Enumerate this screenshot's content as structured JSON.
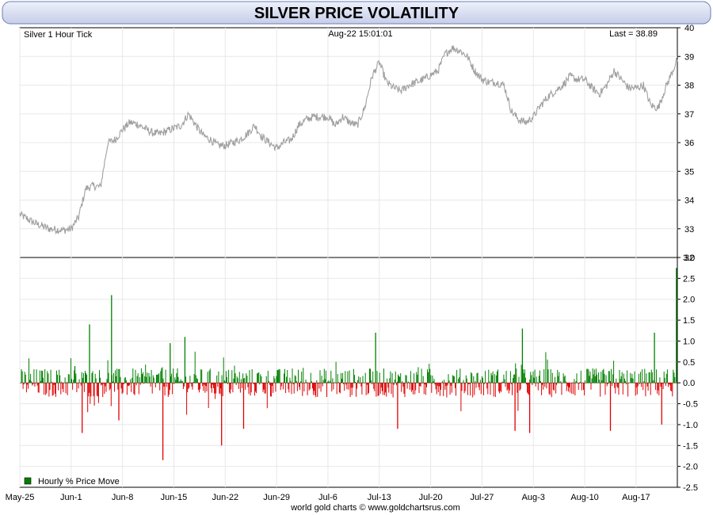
{
  "title": "SILVER PRICE VOLATILITY",
  "header": {
    "series_label": "Silver 1 Hour Tick",
    "timestamp": "Aug-22  15:01:01",
    "last_label": "Last = 38.89"
  },
  "legend": {
    "label": "Hourly % Price Move",
    "color": "#008000"
  },
  "credit": "world gold charts © www.goldchartsrus.com",
  "colors": {
    "title_bar": "#d9dff2",
    "price_line": "#a0a0a0",
    "up_bar": "#008000",
    "down_bar": "#e00000",
    "grid": "#e8e8e8",
    "frame": "#000000"
  },
  "chart_data": [
    {
      "type": "line",
      "name": "Silver 1 Hour Tick",
      "x_labels": [
        "May-25",
        "Jun-1",
        "Jun-8",
        "Jun-15",
        "Jun-22",
        "Jun-29",
        "Jul-6",
        "Jul-13",
        "Jul-20",
        "Jul-27",
        "Aug-3",
        "Aug-10",
        "Aug-17"
      ],
      "y_ticks": [
        32,
        33,
        34,
        35,
        36,
        37,
        38,
        39,
        40
      ],
      "ylim": [
        32,
        40
      ],
      "last_value": 38.89,
      "grid": true,
      "points": [
        [
          "May-25",
          33.5
        ],
        [
          "May-27",
          33.2
        ],
        [
          "May-29",
          33.0
        ],
        [
          "May-31",
          32.95
        ],
        [
          "Jun-1",
          33.0
        ],
        [
          "Jun-2",
          33.4
        ],
        [
          "Jun-3",
          34.4
        ],
        [
          "Jun-4",
          34.5
        ],
        [
          "Jun-5",
          34.45
        ],
        [
          "Jun-6",
          36.0
        ],
        [
          "Jun-7",
          36.1
        ],
        [
          "Jun-8",
          36.45
        ],
        [
          "Jun-9",
          36.7
        ],
        [
          "Jun-10",
          36.65
        ],
        [
          "Jun-11",
          36.5
        ],
        [
          "Jun-12",
          36.35
        ],
        [
          "Jun-13",
          36.3
        ],
        [
          "Jun-15",
          36.5
        ],
        [
          "Jun-16",
          36.6
        ],
        [
          "Jun-17",
          37.0
        ],
        [
          "Jun-18",
          36.6
        ],
        [
          "Jun-19",
          36.25
        ],
        [
          "Jun-20",
          36.1
        ],
        [
          "Jun-21",
          35.9
        ],
        [
          "Jun-22",
          35.9
        ],
        [
          "Jun-23",
          36.0
        ],
        [
          "Jun-24",
          36.1
        ],
        [
          "Jun-25",
          36.3
        ],
        [
          "Jun-26",
          36.6
        ],
        [
          "Jun-27",
          36.2
        ],
        [
          "Jun-28",
          36.0
        ],
        [
          "Jun-29",
          35.8
        ],
        [
          "Jun-30",
          36.0
        ],
        [
          "Jul-1",
          36.1
        ],
        [
          "Jul-2",
          36.6
        ],
        [
          "Jul-3",
          36.8
        ],
        [
          "Jul-4",
          36.9
        ],
        [
          "Jul-5",
          36.9
        ],
        [
          "Jul-6",
          36.9
        ],
        [
          "Jul-7",
          36.6
        ],
        [
          "Jul-8",
          36.9
        ],
        [
          "Jul-9",
          36.7
        ],
        [
          "Jul-10",
          36.6
        ],
        [
          "Jul-11",
          37.2
        ],
        [
          "Jul-12",
          38.3
        ],
        [
          "Jul-13",
          38.8
        ],
        [
          "Jul-14",
          38.1
        ],
        [
          "Jul-15",
          37.9
        ],
        [
          "Jul-16",
          37.8
        ],
        [
          "Jul-17",
          38.0
        ],
        [
          "Jul-18",
          38.1
        ],
        [
          "Jul-19",
          38.2
        ],
        [
          "Jul-20",
          38.35
        ],
        [
          "Jul-21",
          38.5
        ],
        [
          "Jul-22",
          39.1
        ],
        [
          "Jul-23",
          39.3
        ],
        [
          "Jul-24",
          39.2
        ],
        [
          "Jul-25",
          39.0
        ],
        [
          "Jul-26",
          38.5
        ],
        [
          "Jul-27",
          38.2
        ],
        [
          "Jul-28",
          38.1
        ],
        [
          "Jul-29",
          38.1
        ],
        [
          "Jul-30",
          38.0
        ],
        [
          "Jul-31",
          37.1
        ],
        [
          "Aug-1",
          36.8
        ],
        [
          "Aug-2",
          36.7
        ],
        [
          "Aug-3",
          36.9
        ],
        [
          "Aug-4",
          37.3
        ],
        [
          "Aug-5",
          37.6
        ],
        [
          "Aug-6",
          37.8
        ],
        [
          "Aug-7",
          38.0
        ],
        [
          "Aug-8",
          38.3
        ],
        [
          "Aug-9",
          38.2
        ],
        [
          "Aug-10",
          38.2
        ],
        [
          "Aug-11",
          37.9
        ],
        [
          "Aug-12",
          37.7
        ],
        [
          "Aug-13",
          38.0
        ],
        [
          "Aug-14",
          38.5
        ],
        [
          "Aug-15",
          38.2
        ],
        [
          "Aug-16",
          37.9
        ],
        [
          "Aug-17",
          37.9
        ],
        [
          "Aug-18",
          38.0
        ],
        [
          "Aug-19",
          37.3
        ],
        [
          "Aug-20",
          37.2
        ],
        [
          "Aug-21",
          37.9
        ],
        [
          "Aug-22",
          38.89
        ]
      ]
    },
    {
      "type": "bar",
      "name": "Hourly % Price Move",
      "y_ticks": [
        -2.5,
        -2.0,
        -1.5,
        -1.0,
        -0.5,
        0.0,
        0.5,
        1.0,
        1.5,
        2.0,
        2.5,
        3.0
      ],
      "y_tick_labels": [
        "-2.5",
        "-2.0",
        "-1.5",
        "-1.0",
        "-0.5",
        "0.0",
        "0.5",
        "1.0",
        "1.5",
        "2.0",
        "2.5",
        "3.0"
      ],
      "ylim": [
        -2.5,
        3.0
      ],
      "spikes": [
        [
          "Jun-1",
          0.4
        ],
        [
          "Jun-2",
          -1.2
        ],
        [
          "Jun-3",
          1.4
        ],
        [
          "Jun-6",
          2.1
        ],
        [
          "Jun-7",
          -0.9
        ],
        [
          "Jun-13",
          -1.85
        ],
        [
          "Jun-14",
          0.95
        ],
        [
          "Jun-16",
          1.1
        ],
        [
          "Jun-21",
          -1.5
        ],
        [
          "Jun-24",
          -1.1
        ],
        [
          "Jul-12",
          1.2
        ],
        [
          "Jul-15",
          -1.1
        ],
        [
          "Jul-31",
          -1.15
        ],
        [
          "Aug-1",
          1.3
        ],
        [
          "Aug-2",
          -1.2
        ],
        [
          "Aug-13",
          -1.15
        ],
        [
          "Aug-19",
          1.2
        ],
        [
          "Aug-20",
          -1.0
        ],
        [
          "Aug-22",
          2.75
        ]
      ]
    }
  ]
}
